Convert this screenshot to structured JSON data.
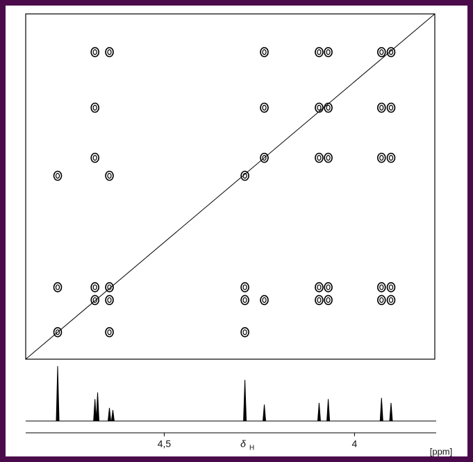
{
  "chart_data": {
    "type": "cosy",
    "xlim": [
      4.864,
      3.789
    ],
    "ylim": [
      4.864,
      3.789
    ],
    "xticks": [
      {
        "value": 4.5,
        "label": "4,5"
      },
      4
    ],
    "xlabel": {
      "symbol": "δ",
      "subscript": "H"
    },
    "unit": "[ppm]",
    "color": "#000000",
    "contour_rows": [
      {
        "y": 3.908,
        "x": [
          4.682,
          4.644,
          4.237,
          4.093,
          4.069,
          3.929,
          3.904
        ]
      },
      {
        "y": 4.081,
        "x": [
          4.682,
          4.237,
          4.093,
          4.069,
          3.929,
          3.904
        ]
      },
      {
        "y": 4.237,
        "x": [
          4.682,
          4.237,
          4.093,
          4.069,
          3.929,
          3.904
        ]
      },
      {
        "y": 4.293,
        "x": [
          4.78,
          4.644,
          4.288
        ]
      },
      {
        "y": 4.64,
        "x": [
          4.78,
          4.682,
          4.644,
          4.288,
          4.093,
          4.069,
          3.929,
          3.904
        ]
      },
      {
        "y": 4.68,
        "x": [
          4.682,
          4.644,
          4.288,
          4.237,
          4.093,
          4.069,
          3.929,
          3.904
        ]
      },
      {
        "y": 4.78,
        "x": [
          4.78,
          4.644,
          4.288
        ]
      }
    ],
    "spectrum": {
      "shifts": [
        4.78,
        4.682,
        4.675,
        4.644,
        4.635,
        4.288,
        4.237,
        4.093,
        4.069,
        3.929,
        3.904
      ],
      "intensities": [
        100,
        40,
        52,
        24,
        20,
        75,
        30,
        33,
        40,
        42,
        33
      ]
    }
  }
}
